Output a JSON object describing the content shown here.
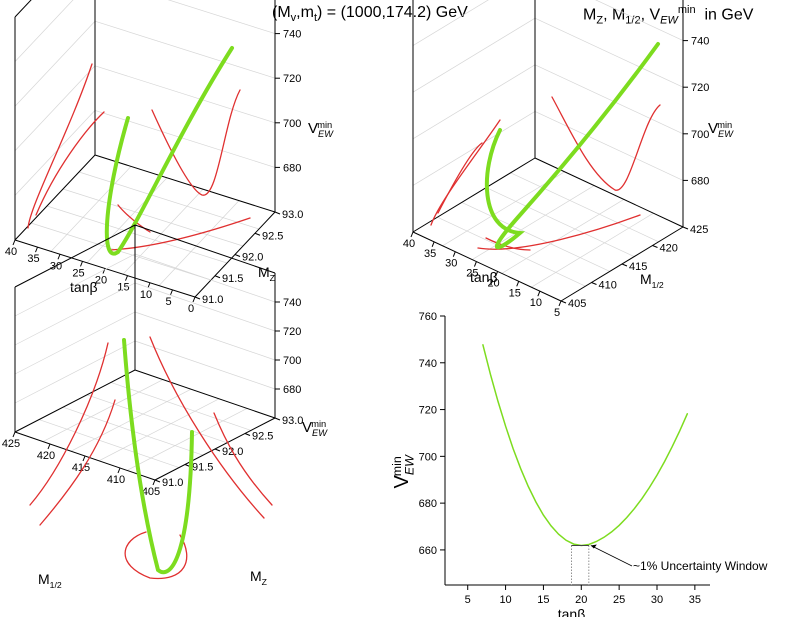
{
  "header": {
    "left": "(Mv,mt) = (1000,174.2) GeV",
    "right": "MZ, M1/2, VEWmin in GeV"
  },
  "colors": {
    "green": "#7ddc1f",
    "red": "#e03030",
    "axis": "#000000",
    "grid": "#d6d6d6"
  },
  "chart_data": [
    {
      "id": "panel-tl",
      "type": "line3d",
      "x_axis": {
        "label": "tanβ",
        "ticks": [
          "40",
          "35",
          "30",
          "25",
          "20",
          "15",
          "10",
          "5",
          "0"
        ]
      },
      "y_axis": {
        "label": "MZ",
        "ticks": [
          "91.0",
          "91.5",
          "92.0",
          "92.5",
          "93.0"
        ]
      },
      "z_axis": {
        "label": "VEWmin",
        "ticks": [
          "680",
          "700",
          "720",
          "740"
        ]
      },
      "series": [
        {
          "name": "curve",
          "color": "green"
        },
        {
          "name": "projection-back-left",
          "color": "red"
        },
        {
          "name": "projection-back-right",
          "color": "red"
        },
        {
          "name": "projection-floor",
          "color": "red"
        }
      ]
    },
    {
      "id": "panel-tr",
      "type": "line3d",
      "x_axis": {
        "label": "tanβ",
        "ticks": [
          "40",
          "35",
          "30",
          "25",
          "20",
          "15",
          "10",
          "5"
        ]
      },
      "y_axis": {
        "label": "M1/2",
        "ticks": [
          "405",
          "410",
          "415",
          "420",
          "425"
        ]
      },
      "z_axis": {
        "label": "VEWmin",
        "ticks": [
          "680",
          "700",
          "720",
          "740"
        ]
      },
      "series": [
        {
          "name": "curve",
          "color": "green"
        },
        {
          "name": "projection-back-left",
          "color": "red"
        },
        {
          "name": "projection-back-right",
          "color": "red"
        },
        {
          "name": "projection-floor",
          "color": "red"
        }
      ]
    },
    {
      "id": "panel-bl",
      "type": "line3d",
      "x_axis": {
        "label": "M1/2",
        "ticks": [
          "425",
          "420",
          "415",
          "410",
          "405"
        ]
      },
      "y_axis": {
        "label": "MZ",
        "ticks": [
          "91.0",
          "91.5",
          "92.0",
          "92.5",
          "93.0"
        ]
      },
      "z_axis": {
        "label": "VEWmin",
        "ticks": [
          "680",
          "700",
          "720",
          "740"
        ]
      },
      "series": [
        {
          "name": "curve",
          "color": "green"
        },
        {
          "name": "projection-back-left",
          "color": "red"
        },
        {
          "name": "projection-back-right",
          "color": "red"
        },
        {
          "name": "projection-floor",
          "color": "red"
        }
      ]
    },
    {
      "id": "panel-br",
      "type": "line",
      "xlabel": "tanβ",
      "ylabel": "VEWmin",
      "xlim": [
        2,
        37
      ],
      "ylim": [
        645,
        760
      ],
      "xticks": [
        5,
        10,
        15,
        20,
        25,
        30,
        35
      ],
      "yticks": [
        660,
        680,
        700,
        720,
        740,
        760
      ],
      "series": [
        {
          "name": "VEWmin",
          "color": "green",
          "x": [
            7,
            8,
            9,
            10,
            11,
            12,
            13,
            14,
            15,
            16,
            17,
            18,
            19,
            20,
            21,
            22,
            23,
            24,
            25,
            26,
            27,
            28,
            29,
            30,
            31,
            32,
            33,
            34
          ],
          "y": [
            747.7,
            735.1,
            723.5,
            712.9,
            703.3,
            694.7,
            687.1,
            680.5,
            674.9,
            670.3,
            666.7,
            664.1,
            662.5,
            661.9,
            662.3,
            663.6,
            665.4,
            667.7,
            670.5,
            673.8,
            677.6,
            681.9,
            686.7,
            692.0,
            697.8,
            704.1,
            710.9,
            718.2
          ]
        }
      ],
      "annotation": {
        "text": "~1% Uncertainty Window",
        "window_x": [
          18.7,
          21.0
        ],
        "window_y": 661.9
      }
    }
  ]
}
